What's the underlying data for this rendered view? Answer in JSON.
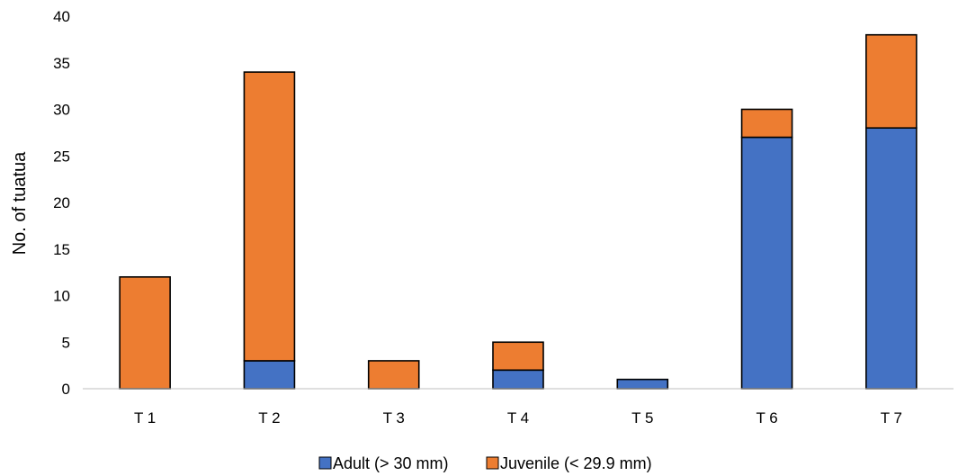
{
  "chart_data": {
    "type": "bar",
    "stacked": true,
    "title": "",
    "xlabel": "",
    "ylabel": "No. of tuatua",
    "categories": [
      "T 1",
      "T 2",
      "T 3",
      "T 4",
      "T 5",
      "T 6",
      "T 7"
    ],
    "ylim": [
      0,
      40
    ],
    "yticks": [
      0,
      5,
      10,
      15,
      20,
      25,
      30,
      35,
      40
    ],
    "grid": false,
    "legend_position": "bottom",
    "series": [
      {
        "name": "Adult (> 30 mm)",
        "color": "#4472C4",
        "values": [
          0,
          3,
          0,
          2,
          1,
          27,
          28
        ]
      },
      {
        "name": "Juvenile (< 29.9 mm)",
        "color": "#ED7D31",
        "values": [
          12,
          31,
          3,
          3,
          0,
          3,
          10
        ]
      }
    ]
  }
}
